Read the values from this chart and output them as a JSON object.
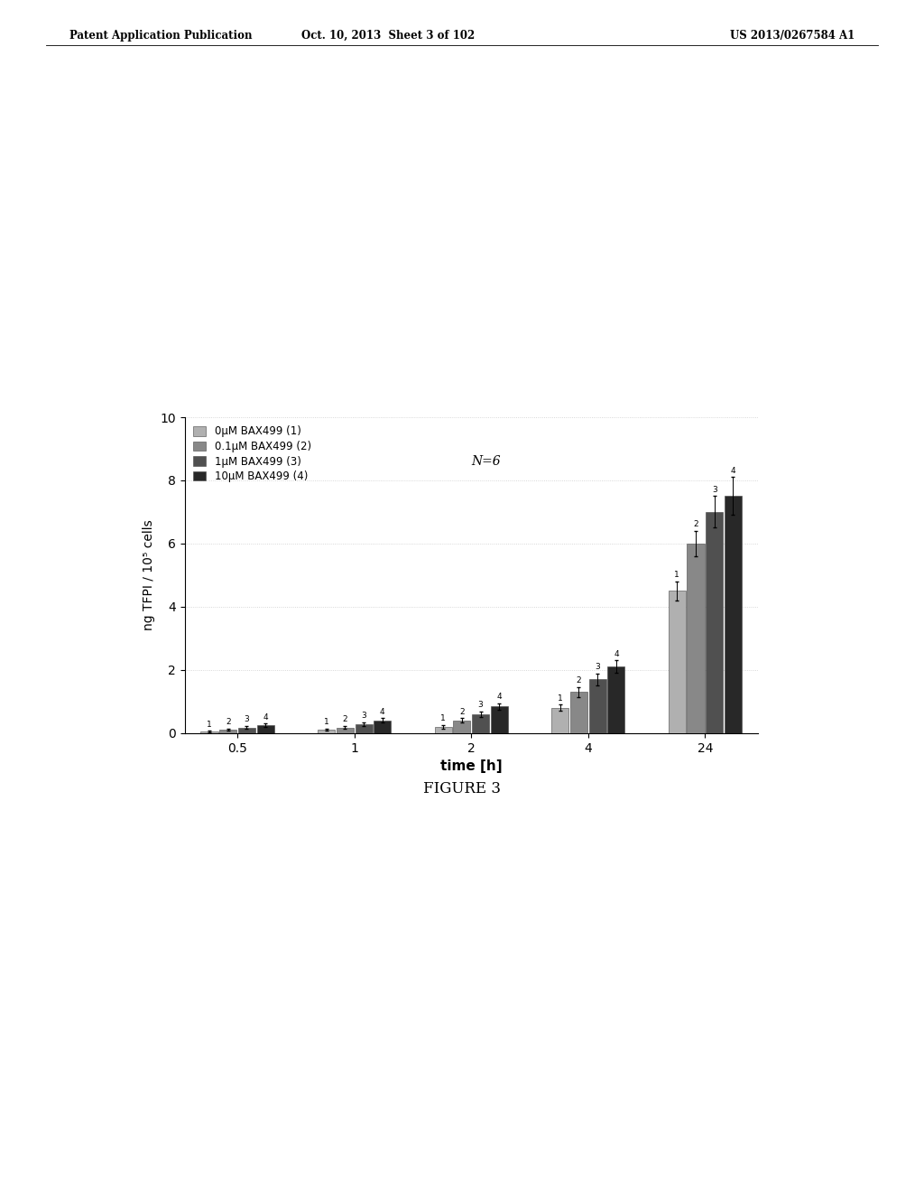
{
  "time_labels": [
    "0.5",
    "1",
    "2",
    "4",
    "24"
  ],
  "series_labels": [
    "0μM BAX499 (1)",
    "0.1μM BAX499 (2)",
    "1μM BAX499 (3)",
    "10μM BAX499 (4)"
  ],
  "series_numbers": [
    "1",
    "2",
    "3",
    "4"
  ],
  "values": [
    [
      0.05,
      0.1,
      0.2,
      0.8,
      4.5
    ],
    [
      0.1,
      0.18,
      0.4,
      1.3,
      6.0
    ],
    [
      0.18,
      0.28,
      0.6,
      1.7,
      7.0
    ],
    [
      0.25,
      0.4,
      0.85,
      2.1,
      7.5
    ]
  ],
  "errors": [
    [
      0.02,
      0.03,
      0.05,
      0.1,
      0.3
    ],
    [
      0.03,
      0.04,
      0.07,
      0.15,
      0.4
    ],
    [
      0.04,
      0.05,
      0.08,
      0.18,
      0.5
    ],
    [
      0.05,
      0.07,
      0.1,
      0.2,
      0.6
    ]
  ],
  "colors": [
    "#b0b0b0",
    "#888888",
    "#505050",
    "#282828"
  ],
  "bar_width": 0.16,
  "ylim": [
    0,
    10
  ],
  "yticks": [
    0,
    2,
    4,
    6,
    8,
    10
  ],
  "ylabel": "ng TFPI / 10⁵ cells",
  "xlabel": "time [h]",
  "annotation": "N=6",
  "background_color": "#ffffff",
  "header_left": "Patent Application Publication",
  "header_center": "Oct. 10, 2013  Sheet 3 of 102",
  "header_right": "US 2013/0267584 A1",
  "figure_label": "FIGURE 3"
}
